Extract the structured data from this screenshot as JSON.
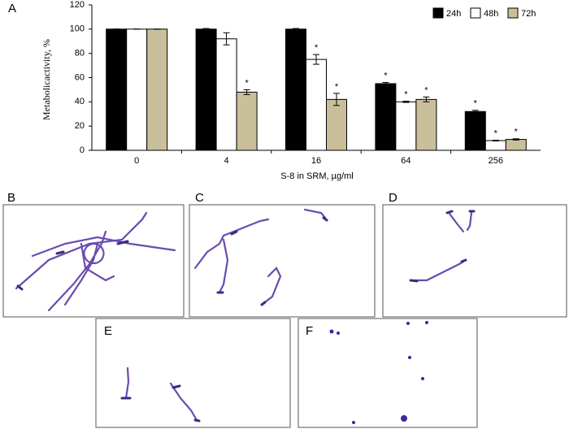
{
  "chart_data": {
    "type": "bar",
    "panel_label": "A",
    "y_label": "Metabolicactivity, %",
    "x_label": "S-8 in SRM, µg/ml",
    "categories": [
      "0",
      "4",
      "16",
      "64",
      "256"
    ],
    "series": [
      {
        "name": "24h",
        "color": "#000000",
        "values": [
          100,
          100,
          100,
          55,
          32
        ],
        "errors": [
          0,
          0.5,
          0.5,
          1,
          1
        ],
        "significant": [
          false,
          false,
          false,
          true,
          true
        ]
      },
      {
        "name": "48h",
        "color": "#ffffff",
        "values": [
          100,
          92,
          75,
          40,
          8
        ],
        "errors": [
          0,
          5,
          4,
          0.5,
          0.3
        ],
        "significant": [
          false,
          false,
          true,
          true,
          true
        ]
      },
      {
        "name": "72h",
        "color": "#c9bf9b",
        "values": [
          100,
          48,
          42,
          42,
          9
        ],
        "errors": [
          0,
          2,
          5,
          2,
          0.5
        ],
        "significant": [
          false,
          true,
          true,
          true,
          true
        ]
      }
    ],
    "significance_marker": "*",
    "ylim": [
      0,
      120
    ],
    "yticks": [
      0,
      20,
      40,
      60,
      80,
      100,
      120
    ],
    "grid": false,
    "legend": "top-right"
  },
  "panels": [
    {
      "label": "B"
    },
    {
      "label": "C"
    },
    {
      "label": "D"
    },
    {
      "label": "E"
    },
    {
      "label": "F"
    }
  ]
}
